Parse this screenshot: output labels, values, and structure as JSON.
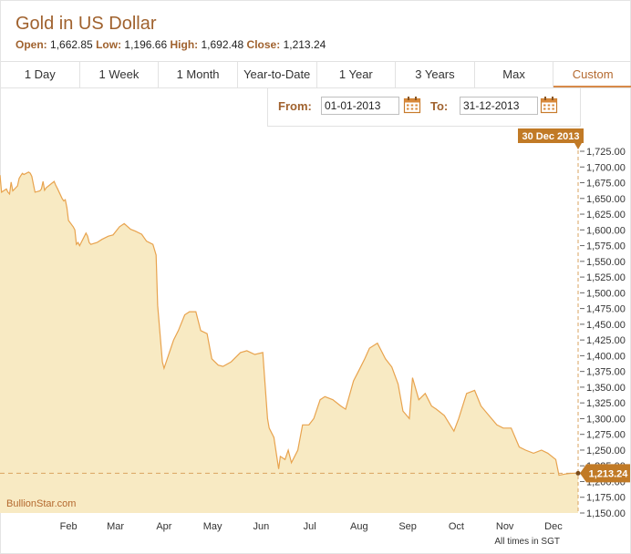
{
  "header": {
    "title": "Gold in US Dollar",
    "open_label": "Open:",
    "open_value": "1,662.85",
    "low_label": "Low:",
    "low_value": "1,196.66",
    "high_label": "High:",
    "high_value": "1,692.48",
    "close_label": "Close:",
    "close_value": "1,213.24"
  },
  "tabs": [
    {
      "label": "1 Day"
    },
    {
      "label": "1 Week"
    },
    {
      "label": "1 Month"
    },
    {
      "label": "Year-to-Date"
    },
    {
      "label": "1 Year"
    },
    {
      "label": "3 Years"
    },
    {
      "label": "Max"
    },
    {
      "label": "Custom"
    }
  ],
  "active_tab": "Custom",
  "range": {
    "from_label": "From:",
    "from_value": "01-01-2013",
    "to_label": "To:",
    "to_value": "31-12-2013"
  },
  "watermark": "BullionStar.com",
  "footnote": "All times in SGT",
  "colors": {
    "brand": "#a0622e",
    "line": "#e8a34e",
    "fill": "#f8eac3",
    "flag": "#c17a26"
  },
  "chart_data": {
    "type": "area",
    "title": "Gold in US Dollar",
    "xlabel": "",
    "ylabel": "",
    "ylim": [
      1150,
      1725
    ],
    "y_ticks": [
      1150,
      1175,
      1200,
      1225,
      1250,
      1275,
      1300,
      1325,
      1350,
      1375,
      1400,
      1425,
      1450,
      1475,
      1500,
      1525,
      1550,
      1575,
      1600,
      1625,
      1650,
      1675,
      1700,
      1725
    ],
    "y_tick_labels": [
      "1,150.00",
      "1,175.00",
      "1,200.00",
      "1,225.00",
      "1,250.00",
      "1,275.00",
      "1,300.00",
      "1,325.00",
      "1,350.00",
      "1,375.00",
      "1,400.00",
      "1,425.00",
      "1,450.00",
      "1,475.00",
      "1,500.00",
      "1,525.00",
      "1,550.00",
      "1,575.00",
      "1,600.00",
      "1,625.00",
      "1,650.00",
      "1,675.00",
      "1,700.00",
      "1,725.00"
    ],
    "x_tick_labels": [
      {
        "label": "Feb",
        "date": "2013-02-01"
      },
      {
        "label": "Mar",
        "date": "2013-03-01"
      },
      {
        "label": "Apr",
        "date": "2013-04-01"
      },
      {
        "label": "May",
        "date": "2013-05-01"
      },
      {
        "label": "Jun",
        "date": "2013-06-01"
      },
      {
        "label": "Jul",
        "date": "2013-07-01"
      },
      {
        "label": "Aug",
        "date": "2013-08-01"
      },
      {
        "label": "Sep",
        "date": "2013-09-01"
      },
      {
        "label": "Oct",
        "date": "2013-10-01"
      },
      {
        "label": "Nov",
        "date": "2013-11-01"
      },
      {
        "label": "Dec",
        "date": "2013-12-01"
      }
    ],
    "x_range": [
      "2013-01-03",
      "2014-01-01"
    ],
    "grid": false,
    "last_date_label": "30 Dec 2013",
    "last_value_label": "1,213.24",
    "last_value": 1213.24,
    "series": [
      {
        "x": [
          "2013-01-03",
          "2013-01-04",
          "2013-01-07",
          "2013-01-08",
          "2013-01-09",
          "2013-01-10",
          "2013-01-11",
          "2013-01-14",
          "2013-01-15",
          "2013-01-16",
          "2013-01-17",
          "2013-01-18",
          "2013-01-21",
          "2013-01-22",
          "2013-01-23",
          "2013-01-24",
          "2013-01-25",
          "2013-01-28",
          "2013-01-29",
          "2013-01-30",
          "2013-01-31",
          "2013-02-01",
          "2013-02-04",
          "2013-02-05",
          "2013-02-06",
          "2013-02-07",
          "2013-02-08",
          "2013-02-11",
          "2013-02-12",
          "2013-02-13",
          "2013-02-14",
          "2013-02-15",
          "2013-02-18",
          "2013-02-19",
          "2013-02-20",
          "2013-02-21",
          "2013-02-22",
          "2013-02-25",
          "2013-02-26",
          "2013-02-27",
          "2013-02-28",
          "2013-03-01",
          "2013-03-05",
          "2013-03-08",
          "2013-03-12",
          "2013-03-15",
          "2013-03-19",
          "2013-03-22",
          "2013-03-26",
          "2013-03-29",
          "2013-04-02",
          "2013-04-05",
          "2013-04-09",
          "2013-04-11",
          "2013-04-12",
          "2013-04-15",
          "2013-04-16",
          "2013-04-18",
          "2013-04-22",
          "2013-04-25",
          "2013-04-29",
          "2013-05-02",
          "2013-05-06",
          "2013-05-09",
          "2013-05-13",
          "2013-05-16",
          "2013-05-20",
          "2013-05-23",
          "2013-05-28",
          "2013-06-03",
          "2013-06-07",
          "2013-06-12",
          "2013-06-17",
          "2013-06-20",
          "2013-06-21",
          "2013-06-24",
          "2013-06-27",
          "2013-06-28",
          "2013-07-01",
          "2013-07-03",
          "2013-07-05",
          "2013-07-09",
          "2013-07-12",
          "2013-07-16",
          "2013-07-19",
          "2013-07-23",
          "2013-07-26",
          "2013-07-31",
          "2013-08-05",
          "2013-08-08",
          "2013-08-13",
          "2013-08-16",
          "2013-08-20",
          "2013-08-23",
          "2013-08-28",
          "2013-09-02",
          "2013-09-06",
          "2013-09-10",
          "2013-09-13",
          "2013-09-17",
          "2013-09-19",
          "2013-09-23",
          "2013-09-27",
          "2013-10-01",
          "2013-10-04",
          "2013-10-09",
          "2013-10-15",
          "2013-10-18",
          "2013-10-23",
          "2013-10-28",
          "2013-11-01",
          "2013-11-06",
          "2013-11-11",
          "2013-11-15",
          "2013-11-20",
          "2013-11-25",
          "2013-11-29",
          "2013-12-04",
          "2013-12-09",
          "2013-12-13",
          "2013-12-18",
          "2013-12-20",
          "2013-12-24",
          "2013-12-27",
          "2013-12-30",
          "2014-01-01"
        ],
        "values": [
          1687,
          1660,
          1665,
          1660,
          1657,
          1676,
          1662,
          1670,
          1682,
          1686,
          1690,
          1688,
          1692,
          1690,
          1685,
          1672,
          1660,
          1662,
          1665,
          1677,
          1663,
          1667,
          1673,
          1675,
          1677,
          1671,
          1666,
          1650,
          1646,
          1648,
          1635,
          1615,
          1605,
          1600,
          1577,
          1580,
          1575,
          1590,
          1595,
          1590,
          1580,
          1577,
          1580,
          1585,
          1590,
          1592,
          1605,
          1610,
          1601,
          1598,
          1593,
          1582,
          1577,
          1560,
          1480,
          1390,
          1380,
          1395,
          1425,
          1440,
          1465,
          1470,
          1470,
          1440,
          1435,
          1395,
          1385,
          1383,
          1390,
          1405,
          1408,
          1402,
          1405,
          1300,
          1285,
          1270,
          1220,
          1240,
          1235,
          1250,
          1230,
          1250,
          1290,
          1290,
          1300,
          1330,
          1335,
          1330,
          1320,
          1315,
          1360,
          1375,
          1395,
          1412,
          1420,
          1395,
          1382,
          1355,
          1312,
          1300,
          1365,
          1330,
          1340,
          1320,
          1315,
          1305,
          1280,
          1300,
          1340,
          1345,
          1320,
          1305,
          1290,
          1285,
          1285,
          1255,
          1250,
          1245,
          1250,
          1245,
          1235,
          1210,
          1212,
          1213,
          1213.24,
          1213.24
        ]
      }
    ]
  }
}
